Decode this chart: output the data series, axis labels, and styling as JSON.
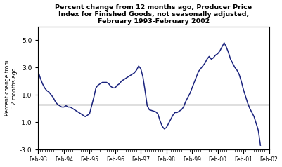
{
  "title": "Percent change from 12 months ago, Producer Price\nIndex for Finished Goods, not seasonally adjusted,\nFebruary 1993-February 2002",
  "ylabel": "Percent change from\n12 months ago",
  "line_color": "#1a237e",
  "reference_line_y": 0.3,
  "reference_line_color": "#000000",
  "background_color": "#ffffff",
  "ylim": [
    -3.0,
    6.0
  ],
  "yticks": [
    -3.0,
    -1.0,
    1.0,
    3.0,
    5.0
  ],
  "xtick_labels": [
    "Feb-93",
    "Feb-94",
    "Feb-95",
    "Feb-96",
    "Feb-97",
    "Feb-98",
    "Feb-99",
    "Feb-00",
    "Feb-01",
    "Feb-02"
  ],
  "xtick_positions": [
    0,
    12,
    24,
    36,
    48,
    60,
    72,
    84,
    96,
    108
  ],
  "values": [
    2.7,
    2.2,
    1.8,
    1.5,
    1.3,
    1.2,
    1.0,
    0.8,
    0.5,
    0.3,
    0.2,
    0.1,
    0.1,
    0.2,
    0.1,
    0.1,
    0.0,
    -0.1,
    -0.2,
    -0.3,
    -0.4,
    -0.5,
    -0.6,
    -0.5,
    -0.4,
    0.2,
    0.8,
    1.5,
    1.7,
    1.8,
    1.9,
    1.9,
    1.9,
    1.8,
    1.6,
    1.5,
    1.5,
    1.7,
    1.8,
    2.0,
    2.1,
    2.2,
    2.3,
    2.4,
    2.5,
    2.6,
    2.8,
    3.1,
    2.9,
    2.3,
    1.3,
    0.2,
    -0.1,
    -0.15,
    -0.2,
    -0.25,
    -0.4,
    -0.9,
    -1.3,
    -1.5,
    -1.4,
    -1.1,
    -0.8,
    -0.5,
    -0.3,
    -0.3,
    -0.2,
    -0.1,
    0.1,
    0.5,
    0.8,
    1.1,
    1.5,
    1.9,
    2.3,
    2.7,
    2.9,
    3.1,
    3.3,
    3.6,
    3.8,
    3.6,
    3.7,
    3.9,
    4.0,
    4.2,
    4.5,
    4.8,
    4.5,
    4.1,
    3.6,
    3.3,
    3.0,
    2.8,
    2.5,
    2.0,
    1.4,
    0.9,
    0.4,
    0.0,
    -0.3,
    -0.6,
    -1.1,
    -1.6,
    -2.7
  ]
}
